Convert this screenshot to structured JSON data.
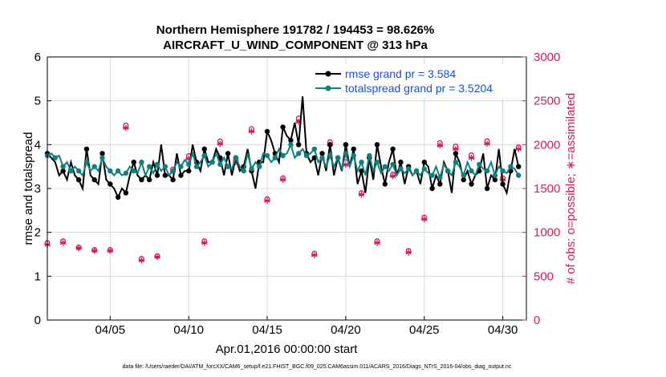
{
  "chart_data": {
    "type": "line",
    "title": "Northern Hemisphere 191782 / 194453 = 98.626%",
    "subtitle": "AIRCRAFT_U_WIND_COMPONENT @ 313 hPa",
    "xlabel": "Apr.01,2016 00:00:00 start",
    "ylabel": "rmse and totalspread",
    "ylabel_right": "# of obs: o=possible; ∗=assimilated",
    "footer": "data file: /Users/raeder/DAI/ATM_forcXX/CAM6_setup/f.e21.FHIST_BGC.f09_025.CAM6assim.011/ACARS_2016/Diags_NTrS_2016-04/obs_diag_output.nc",
    "xlim": [
      1,
      31.5
    ],
    "ylim": [
      0,
      6
    ],
    "ylim_right": [
      0,
      3000
    ],
    "x_ticks": [
      5,
      10,
      15,
      20,
      25,
      30
    ],
    "x_tick_labels": [
      "04/05",
      "04/10",
      "04/15",
      "04/20",
      "04/25",
      "04/30"
    ],
    "y_ticks": [
      0,
      1,
      2,
      3,
      4,
      5,
      6
    ],
    "y_tick_labels": [
      "0",
      "1",
      "2",
      "3",
      "4",
      "5",
      "6"
    ],
    "y2_ticks": [
      0,
      500,
      1000,
      1500,
      2000,
      2500,
      3000
    ],
    "y2_tick_labels": [
      "0",
      "500",
      "1000",
      "1500",
      "2000",
      "2500",
      "3000"
    ],
    "grid": true,
    "legend_location": "top-right",
    "colors": {
      "rmse": "#000000",
      "spread": "#0e8080",
      "obs": "#d41a5a",
      "legend_text": "#1a50d6",
      "grid": "#d0d0d0"
    },
    "legend": [
      {
        "name": "rmse grand pr = 3.584",
        "series": "rmse"
      },
      {
        "name": "totalspread grand pr = 3.5204",
        "series": "spread"
      }
    ],
    "series": [
      {
        "name": "rmse",
        "axis": "left",
        "marker": "circle",
        "x": [
          1.0,
          1.25,
          1.5,
          1.75,
          2.0,
          2.25,
          2.5,
          2.75,
          3.0,
          3.25,
          3.5,
          3.75,
          4.0,
          4.25,
          4.5,
          4.75,
          5.0,
          5.25,
          5.5,
          5.75,
          6.0,
          6.25,
          6.5,
          6.75,
          7.0,
          7.25,
          7.5,
          7.75,
          8.0,
          8.25,
          8.5,
          8.75,
          9.0,
          9.25,
          9.5,
          9.75,
          10.0,
          10.25,
          10.5,
          10.75,
          11.0,
          11.25,
          11.5,
          11.75,
          12.0,
          12.25,
          12.5,
          12.75,
          13.0,
          13.25,
          13.5,
          13.75,
          14.0,
          14.25,
          14.5,
          14.75,
          15.0,
          15.25,
          15.5,
          15.75,
          16.0,
          16.25,
          16.5,
          16.75,
          17.0,
          17.25,
          17.5,
          17.75,
          18.0,
          18.25,
          18.5,
          18.75,
          19.0,
          19.25,
          19.5,
          19.75,
          20.0,
          20.25,
          20.5,
          20.75,
          21.0,
          21.25,
          21.5,
          21.75,
          22.0,
          22.25,
          22.5,
          22.75,
          23.0,
          23.25,
          23.5,
          23.75,
          24.0,
          24.25,
          24.5,
          24.75,
          25.0,
          25.25,
          25.5,
          25.75,
          26.0,
          26.25,
          26.5,
          26.75,
          27.0,
          27.25,
          27.5,
          27.75,
          28.0,
          28.25,
          28.5,
          28.75,
          29.0,
          29.25,
          29.5,
          29.75,
          30.0,
          30.25,
          30.5,
          30.75,
          31.0
        ],
        "values": [
          3.8,
          3.7,
          3.6,
          3.3,
          3.4,
          3.2,
          3.6,
          3.3,
          3.2,
          3.0,
          3.9,
          3.3,
          3.2,
          3.1,
          3.8,
          3.2,
          3.1,
          3.0,
          2.8,
          3.0,
          2.9,
          3.3,
          3.6,
          3.3,
          3.2,
          3.3,
          3.2,
          3.6,
          3.3,
          4.0,
          3.3,
          3.3,
          3.2,
          3.8,
          3.3,
          3.4,
          3.4,
          4.0,
          3.6,
          3.4,
          3.9,
          3.6,
          3.6,
          3.9,
          3.7,
          3.3,
          3.8,
          3.3,
          3.7,
          3.4,
          3.5,
          3.9,
          3.4,
          3.0,
          3.6,
          3.6,
          4.3,
          4.1,
          3.8,
          3.6,
          4.4,
          4.2,
          4.1,
          4.5,
          4.0,
          5.1,
          3.8,
          3.6,
          3.7,
          3.3,
          3.8,
          3.4,
          4.0,
          3.3,
          3.7,
          3.4,
          4.0,
          3.5,
          3.9,
          3.1,
          3.4,
          2.9,
          3.7,
          3.2,
          4.0,
          3.5,
          3.1,
          3.6,
          3.9,
          3.3,
          3.6,
          3.1,
          3.5,
          3.3,
          3.4,
          3.1,
          3.6,
          3.5,
          3.0,
          3.3,
          3.1,
          3.6,
          3.4,
          2.9,
          3.8,
          3.6,
          3.2,
          3.4,
          3.1,
          3.3,
          3.4,
          3.8,
          3.0,
          3.3,
          3.2,
          3.9,
          3.1,
          2.9,
          3.4,
          3.9,
          3.5
        ],
        "points_shown": [
          0,
          4,
          8,
          10,
          12,
          14,
          16,
          18,
          20,
          22,
          24,
          26,
          28,
          30,
          32,
          34,
          36,
          38,
          40,
          42,
          44,
          46,
          48,
          50,
          52,
          54,
          56,
          58,
          60,
          62,
          64,
          66,
          68,
          70,
          72,
          74,
          76,
          78,
          80,
          82,
          84,
          86,
          88,
          90,
          92,
          94,
          96,
          98,
          100,
          102,
          104,
          106,
          108,
          110,
          112,
          114,
          116,
          118,
          120
        ]
      },
      {
        "name": "totalspread",
        "axis": "left",
        "marker": "circle",
        "x": [
          1.0,
          1.25,
          1.5,
          1.75,
          2.0,
          2.25,
          2.5,
          2.75,
          3.0,
          3.25,
          3.5,
          3.75,
          4.0,
          4.25,
          4.5,
          4.75,
          5.0,
          5.25,
          5.5,
          5.75,
          6.0,
          6.25,
          6.5,
          6.75,
          7.0,
          7.25,
          7.5,
          7.75,
          8.0,
          8.25,
          8.5,
          8.75,
          9.0,
          9.25,
          9.5,
          9.75,
          10.0,
          10.25,
          10.5,
          10.75,
          11.0,
          11.25,
          11.5,
          11.75,
          12.0,
          12.25,
          12.5,
          12.75,
          13.0,
          13.25,
          13.5,
          13.75,
          14.0,
          14.25,
          14.5,
          14.75,
          15.0,
          15.25,
          15.5,
          15.75,
          16.0,
          16.25,
          16.5,
          16.75,
          17.0,
          17.25,
          17.5,
          17.75,
          18.0,
          18.25,
          18.5,
          18.75,
          19.0,
          19.25,
          19.5,
          19.75,
          20.0,
          20.25,
          20.5,
          20.75,
          21.0,
          21.25,
          21.5,
          21.75,
          22.0,
          22.25,
          22.5,
          22.75,
          23.0,
          23.25,
          23.5,
          23.75,
          24.0,
          24.25,
          24.5,
          24.75,
          25.0,
          25.25,
          25.5,
          25.75,
          26.0,
          26.25,
          26.5,
          26.75,
          27.0,
          27.25,
          27.5,
          27.75,
          28.0,
          28.25,
          28.5,
          28.75,
          29.0,
          29.25,
          29.5,
          29.75,
          30.0,
          30.25,
          30.5,
          30.75,
          31.0
        ],
        "values": [
          3.75,
          3.8,
          3.7,
          3.75,
          3.5,
          3.6,
          3.4,
          3.5,
          3.4,
          3.3,
          3.6,
          3.4,
          3.5,
          3.4,
          3.7,
          3.5,
          3.4,
          3.3,
          3.4,
          3.3,
          3.35,
          3.5,
          3.4,
          3.35,
          3.6,
          3.3,
          3.5,
          3.35,
          3.55,
          3.4,
          3.5,
          3.3,
          3.4,
          3.6,
          3.5,
          3.65,
          3.55,
          3.8,
          3.5,
          3.6,
          3.75,
          3.5,
          3.6,
          3.8,
          3.55,
          3.7,
          3.5,
          3.45,
          3.7,
          3.5,
          3.4,
          3.8,
          3.45,
          3.6,
          3.5,
          3.8,
          3.75,
          3.6,
          3.7,
          3.9,
          3.75,
          3.8,
          4.0,
          3.7,
          3.8,
          3.9,
          3.75,
          3.8,
          3.9,
          3.6,
          3.7,
          3.5,
          3.75,
          3.5,
          3.7,
          3.45,
          3.8,
          3.5,
          3.75,
          3.4,
          3.6,
          3.3,
          3.75,
          3.4,
          3.6,
          3.35,
          3.5,
          3.4,
          3.55,
          3.3,
          3.45,
          3.35,
          3.45,
          3.3,
          3.4,
          3.3,
          3.45,
          3.35,
          3.3,
          3.5,
          3.25,
          3.55,
          3.4,
          3.3,
          3.6,
          3.5,
          3.3,
          3.6,
          3.4,
          3.3,
          3.55,
          3.45,
          3.4,
          3.6,
          3.3,
          3.5,
          3.4,
          3.35,
          3.5,
          3.45,
          3.3
        ],
        "points_shown": [
          0,
          2,
          4,
          6,
          8,
          10,
          12,
          14,
          16,
          18,
          20,
          22,
          24,
          26,
          28,
          30,
          32,
          34,
          36,
          38,
          40,
          42,
          44,
          46,
          48,
          50,
          52,
          54,
          56,
          58,
          60,
          62,
          64,
          66,
          68,
          70,
          72,
          74,
          76,
          78,
          80,
          82,
          84,
          86,
          88,
          90,
          92,
          94,
          96,
          98,
          100,
          102,
          104,
          106,
          108,
          110,
          112,
          114,
          116,
          118,
          120
        ]
      },
      {
        "name": "obs possible",
        "axis": "right",
        "marker": "o",
        "x": [
          1.0,
          1.5,
          2.0,
          2.5,
          3.0,
          3.5,
          4.0,
          4.5,
          5.0,
          5.5,
          6.0,
          6.5,
          7.0,
          7.5,
          8.0,
          8.5,
          9.0,
          9.5,
          10.0,
          10.5,
          11.0,
          11.5,
          12.0,
          12.5,
          13.0,
          13.5,
          14.0,
          14.5,
          15.0,
          15.5,
          16.0,
          16.5,
          17.0,
          17.5,
          18.0,
          18.5,
          19.0,
          19.5,
          20.0,
          20.5,
          21.0,
          21.5,
          22.0,
          22.5,
          23.0,
          23.5,
          24.0,
          24.5,
          25.0,
          25.5,
          26.0,
          26.5,
          27.0,
          27.5,
          28.0,
          28.5,
          29.0,
          29.5,
          30.0,
          30.5,
          31.0
        ],
        "values": [
          880,
          2080,
          900,
          1960,
          830,
          2100,
          800,
          2120,
          800,
          1780,
          2220,
          1650,
          700,
          2040,
          730,
          1860,
          1720,
          2160,
          1870,
          2200,
          900,
          1460,
          2040,
          720,
          1830,
          2020,
          2180,
          1980,
          1380,
          1570,
          1620,
          2560,
          2300,
          1390,
          760,
          2080,
          2030,
          1460,
          1800,
          2060,
          1450,
          1600,
          900,
          2000,
          1660,
          1560,
          790,
          2000,
          1170,
          1500,
          2020,
          1280,
          1980,
          1360,
          1880,
          1570,
          2040,
          1270,
          1620,
          1090,
          1970
        ],
        "points_shown": [
          0,
          2,
          4,
          6,
          8,
          10,
          12,
          14,
          16,
          18,
          20,
          22,
          24,
          26,
          28,
          30,
          32,
          34,
          36,
          38,
          40,
          42,
          44,
          46,
          48,
          50,
          52,
          54,
          56,
          58,
          60
        ]
      },
      {
        "name": "obs assimilated",
        "axis": "right",
        "marker": "star",
        "x": [
          1.0,
          1.5,
          2.0,
          2.5,
          3.0,
          3.5,
          4.0,
          4.5,
          5.0,
          5.5,
          6.0,
          6.5,
          7.0,
          7.5,
          8.0,
          8.5,
          9.0,
          9.5,
          10.0,
          10.5,
          11.0,
          11.5,
          12.0,
          12.5,
          13.0,
          13.5,
          14.0,
          14.5,
          15.0,
          15.5,
          16.0,
          16.5,
          17.0,
          17.5,
          18.0,
          18.5,
          19.0,
          19.5,
          20.0,
          20.5,
          21.0,
          21.5,
          22.0,
          22.5,
          23.0,
          23.5,
          24.0,
          24.5,
          25.0,
          25.5,
          26.0,
          26.5,
          27.0,
          27.5,
          28.0,
          28.5,
          29.0,
          29.5,
          30.0,
          30.5,
          31.0
        ],
        "values": [
          860,
          2040,
          880,
          1920,
          820,
          2060,
          790,
          2080,
          790,
          1750,
          2190,
          1620,
          680,
          2000,
          720,
          1830,
          1700,
          2130,
          1840,
          2170,
          880,
          1430,
          2010,
          700,
          1800,
          1990,
          2150,
          1950,
          1360,
          1550,
          1600,
          2500,
          2260,
          1370,
          740,
          2050,
          2000,
          1440,
          1770,
          2030,
          1430,
          1580,
          880,
          1970,
          1640,
          1540,
          770,
          1970,
          1150,
          1480,
          1990,
          1260,
          1950,
          1340,
          1850,
          1550,
          2010,
          1250,
          1600,
          1070,
          1950
        ],
        "points_shown": [
          0,
          2,
          4,
          6,
          8,
          10,
          12,
          14,
          16,
          18,
          20,
          22,
          24,
          26,
          28,
          30,
          32,
          34,
          36,
          38,
          40,
          42,
          44,
          46,
          48,
          50,
          52,
          54,
          56,
          58,
          60
        ]
      }
    ]
  }
}
